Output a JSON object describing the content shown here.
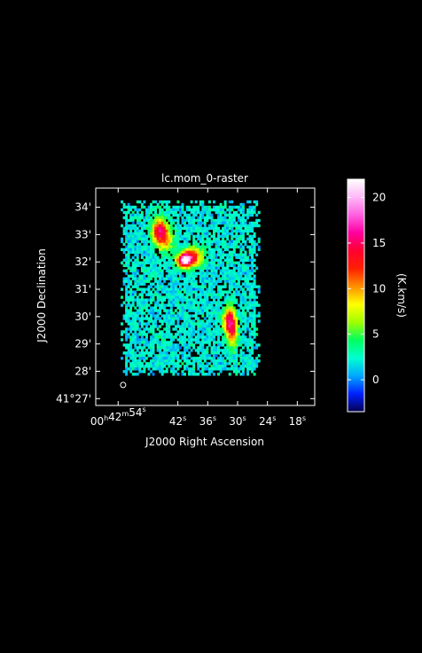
{
  "chart_data": {
    "type": "heatmap",
    "title": "lc.mom_0-raster",
    "xlabel": "J2000 Right Ascension",
    "ylabel": "J2000 Declination",
    "x_ticks": [
      {
        "h": "00",
        "m": "42",
        "s": "54",
        "pos_ra_sec": 54
      },
      {
        "s": "42",
        "pos_ra_sec": 42
      },
      {
        "s": "36",
        "pos_ra_sec": 36
      },
      {
        "s": "30",
        "pos_ra_sec": 30
      },
      {
        "s": "24",
        "pos_ra_sec": 24
      },
      {
        "s": "18",
        "pos_ra_sec": 18
      }
    ],
    "y_ticks": [
      {
        "label": "34'",
        "dec_arcmin": 34
      },
      {
        "label": "33'",
        "dec_arcmin": 33
      },
      {
        "label": "32'",
        "dec_arcmin": 32
      },
      {
        "label": "31'",
        "dec_arcmin": 31
      },
      {
        "label": "30'",
        "dec_arcmin": 30
      },
      {
        "label": "29'",
        "dec_arcmin": 29
      },
      {
        "label": "28'",
        "dec_arcmin": 28
      },
      {
        "label": "41°27'",
        "dec_arcmin": 27
      }
    ],
    "xlim_ra_sec": [
      58.5,
      14.5
    ],
    "ylim_dec_arcmin": [
      26.75,
      34.7
    ],
    "colorbar": {
      "label": "(K.km/s)",
      "range": [
        -3.5,
        22
      ],
      "ticks": [
        0,
        5,
        10,
        15,
        20
      ],
      "stops": [
        "#050050",
        "#0020ff",
        "#00a8ff",
        "#00ffd0",
        "#00ff60",
        "#a0ff00",
        "#ffff00",
        "#ff9000",
        "#ff2000",
        "#ff0030",
        "#ff00a0",
        "#ff60e0",
        "#ffb8f8",
        "#ffffff"
      ]
    },
    "map_region": {
      "ra_sec": [
        53.5,
        25.5
      ],
      "dec_arcmin": [
        27.85,
        34.25
      ]
    },
    "background_level": 2,
    "peaks": [
      {
        "ra_sec": 45.7,
        "dec_arcmin": 33.15,
        "peak": 12,
        "sigma_ra_sec": 1.0,
        "sigma_dec_arcmin": 0.3
      },
      {
        "ra_sec": 44.5,
        "dec_arcmin": 32.8,
        "peak": 7,
        "sigma_ra_sec": 1.2,
        "sigma_dec_arcmin": 0.3
      },
      {
        "ra_sec": 40.7,
        "dec_arcmin": 32.05,
        "peak": 19,
        "sigma_ra_sec": 1.0,
        "sigma_dec_arcmin": 0.18
      },
      {
        "ra_sec": 38.8,
        "dec_arcmin": 32.2,
        "peak": 10,
        "sigma_ra_sec": 1.3,
        "sigma_dec_arcmin": 0.25
      },
      {
        "ra_sec": 31.6,
        "dec_arcmin": 29.85,
        "peak": 13,
        "sigma_ra_sec": 0.9,
        "sigma_dec_arcmin": 0.35
      },
      {
        "ra_sec": 31.0,
        "dec_arcmin": 29.3,
        "peak": 7,
        "sigma_ra_sec": 0.7,
        "sigma_dec_arcmin": 0.35
      }
    ],
    "beam": {
      "ra_sec": 53.0,
      "dec_arcmin": 27.5
    },
    "grid": false,
    "legend": "right"
  }
}
